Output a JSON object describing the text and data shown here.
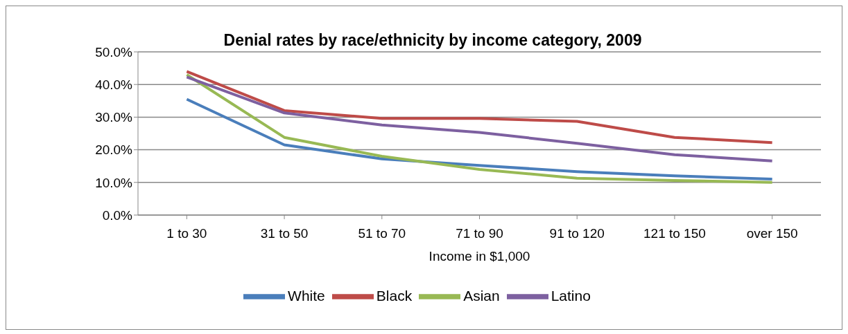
{
  "chart_data": {
    "type": "line",
    "title": "Denial rates by race/ethnicity by income category, 2009",
    "xlabel": "Income in $1,000",
    "categories": [
      "1 to 30",
      "31 to 50",
      "51 to 70",
      "71 to 90",
      "91 to 120",
      "121 to 150",
      "over 150"
    ],
    "series": [
      {
        "name": "White",
        "color": "#4a7ebb",
        "values": [
          35.5,
          21.5,
          17.2,
          15.2,
          13.3,
          12.0,
          11.0
        ]
      },
      {
        "name": "Black",
        "color": "#be4b48",
        "values": [
          44.0,
          32.0,
          29.6,
          29.6,
          28.7,
          23.8,
          22.2
        ]
      },
      {
        "name": "Asian",
        "color": "#98b954",
        "values": [
          43.0,
          23.8,
          18.0,
          14.0,
          11.3,
          10.6,
          10.0
        ]
      },
      {
        "name": "Latino",
        "color": "#7d60a0",
        "values": [
          42.3,
          31.3,
          27.6,
          25.3,
          22.0,
          18.5,
          16.6
        ]
      }
    ],
    "ylim": [
      0,
      50
    ],
    "yticks": [
      {
        "value": 0,
        "label": "0.0%"
      },
      {
        "value": 10,
        "label": "10.0%"
      },
      {
        "value": 20,
        "label": "20.0%"
      },
      {
        "value": 30,
        "label": "30.0%"
      },
      {
        "value": 40,
        "label": "40.0%"
      },
      {
        "value": 50,
        "label": "50.0%"
      }
    ],
    "grid": "y",
    "legend": "bottom",
    "marker": "none",
    "line_style": "solid"
  }
}
